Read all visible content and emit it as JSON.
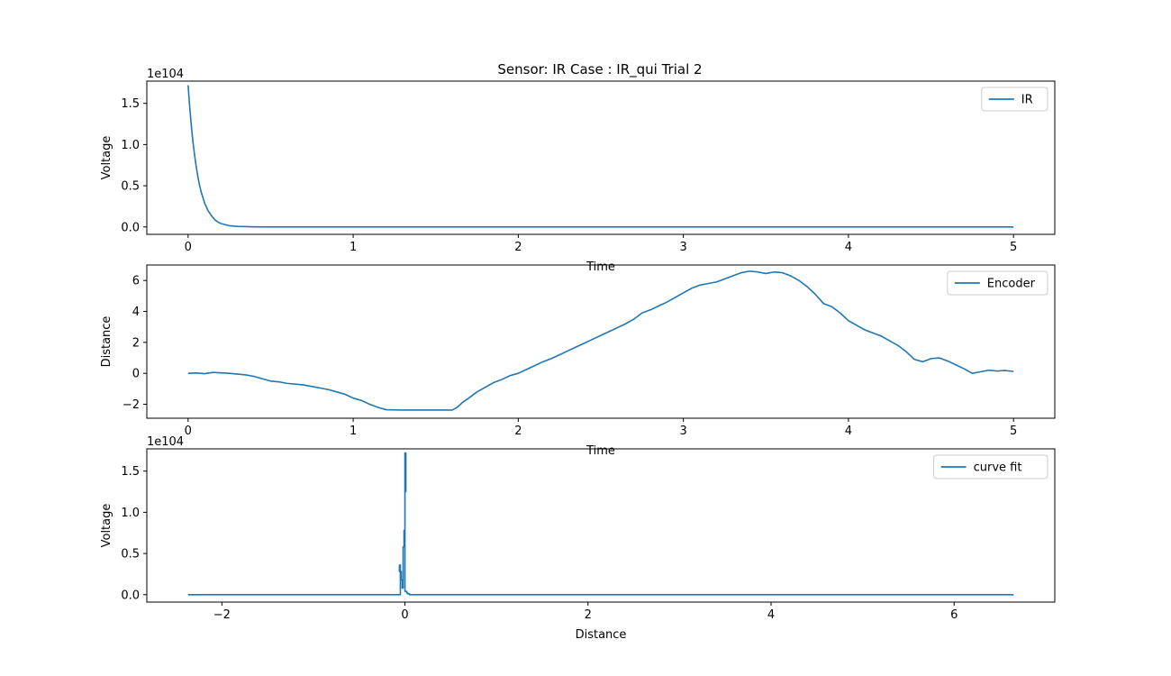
{
  "title": "Sensor: IR Case : IR_qui Trial 2",
  "colors": {
    "line": "#1f77b4",
    "axis": "#000000",
    "legend_border": "#cccccc",
    "background": "#ffffff"
  },
  "chart_data": [
    {
      "type": "line",
      "title": "Sensor: IR Case : IR_qui Trial 2",
      "xlabel": "Time",
      "ylabel": "Voltage",
      "y_offset_label": "1e104",
      "xlim": [
        -0.25,
        5.25
      ],
      "ylim": [
        -0.09,
        1.77
      ],
      "xticks": [
        0,
        1,
        2,
        3,
        4,
        5
      ],
      "xtick_labels": [
        "0",
        "1",
        "2",
        "3",
        "4",
        "5"
      ],
      "yticks": [
        0.0,
        0.5,
        1.0,
        1.5
      ],
      "ytick_labels": [
        "0.0",
        "0.5",
        "1.0",
        "1.5"
      ],
      "legend_position": "top-right",
      "grid": false,
      "series": [
        {
          "name": "IR",
          "x": [
            0,
            0.01,
            0.02,
            0.03,
            0.04,
            0.05,
            0.06,
            0.07,
            0.08,
            0.1,
            0.12,
            0.14,
            0.16,
            0.18,
            0.2,
            0.25,
            0.3,
            0.4,
            0.5,
            1,
            2,
            3,
            4,
            5
          ],
          "y": [
            1.72,
            1.45,
            1.22,
            1.02,
            0.86,
            0.72,
            0.6,
            0.5,
            0.42,
            0.29,
            0.2,
            0.14,
            0.09,
            0.06,
            0.04,
            0.015,
            0.006,
            0.001,
            0,
            0,
            0,
            0,
            0,
            0
          ]
        }
      ]
    },
    {
      "type": "line",
      "xlabel": "Time",
      "ylabel": "Distance",
      "xlim": [
        -0.25,
        5.25
      ],
      "ylim": [
        -2.9,
        7.0
      ],
      "xticks": [
        0,
        1,
        2,
        3,
        4,
        5
      ],
      "xtick_labels": [
        "0",
        "1",
        "2",
        "3",
        "4",
        "5"
      ],
      "yticks": [
        -2,
        0,
        2,
        4,
        6
      ],
      "ytick_labels": [
        "−2",
        "0",
        "2",
        "4",
        "6"
      ],
      "legend_position": "top-right",
      "grid": false,
      "series": [
        {
          "name": "Encoder",
          "x": [
            0,
            0.05,
            0.1,
            0.15,
            0.2,
            0.25,
            0.3,
            0.35,
            0.4,
            0.45,
            0.5,
            0.55,
            0.6,
            0.65,
            0.7,
            0.75,
            0.8,
            0.85,
            0.9,
            0.95,
            1.0,
            1.05,
            1.1,
            1.15,
            1.2,
            1.3,
            1.4,
            1.5,
            1.6,
            1.63,
            1.66,
            1.7,
            1.75,
            1.8,
            1.85,
            1.9,
            1.95,
            2.0,
            2.05,
            2.1,
            2.15,
            2.2,
            2.25,
            2.3,
            2.35,
            2.4,
            2.45,
            2.5,
            2.55,
            2.6,
            2.65,
            2.7,
            2.75,
            2.8,
            2.85,
            2.9,
            2.95,
            3.0,
            3.05,
            3.1,
            3.15,
            3.2,
            3.25,
            3.3,
            3.35,
            3.4,
            3.45,
            3.5,
            3.55,
            3.6,
            3.65,
            3.7,
            3.75,
            3.8,
            3.85,
            3.9,
            3.95,
            4.0,
            4.05,
            4.1,
            4.15,
            4.2,
            4.25,
            4.3,
            4.35,
            4.4,
            4.45,
            4.5,
            4.55,
            4.6,
            4.65,
            4.7,
            4.75,
            4.8,
            4.85,
            4.9,
            4.95,
            5.0
          ],
          "y": [
            0,
            0.02,
            -0.02,
            0.06,
            0.03,
            0.0,
            -0.05,
            -0.1,
            -0.2,
            -0.35,
            -0.5,
            -0.55,
            -0.65,
            -0.7,
            -0.75,
            -0.85,
            -0.95,
            -1.05,
            -1.2,
            -1.35,
            -1.6,
            -1.75,
            -2.0,
            -2.2,
            -2.35,
            -2.37,
            -2.37,
            -2.37,
            -2.37,
            -2.2,
            -1.9,
            -1.6,
            -1.2,
            -0.9,
            -0.6,
            -0.4,
            -0.15,
            0.0,
            0.25,
            0.5,
            0.75,
            0.95,
            1.2,
            1.45,
            1.7,
            1.95,
            2.2,
            2.45,
            2.7,
            2.95,
            3.2,
            3.5,
            3.9,
            4.1,
            4.35,
            4.6,
            4.9,
            5.2,
            5.5,
            5.7,
            5.8,
            5.9,
            6.1,
            6.3,
            6.5,
            6.6,
            6.55,
            6.45,
            6.55,
            6.5,
            6.3,
            6.0,
            5.6,
            5.1,
            4.5,
            4.3,
            3.9,
            3.4,
            3.1,
            2.8,
            2.6,
            2.4,
            2.1,
            1.8,
            1.4,
            0.9,
            0.75,
            0.95,
            1.0,
            0.8,
            0.55,
            0.3,
            0.0,
            0.1,
            0.2,
            0.15,
            0.18,
            0.12
          ]
        }
      ]
    },
    {
      "type": "line",
      "xlabel": "Distance",
      "ylabel": "Voltage",
      "y_offset_label": "1e104",
      "xlim": [
        -2.82,
        7.1
      ],
      "ylim": [
        -0.09,
        1.77
      ],
      "xticks": [
        -2,
        0,
        2,
        4,
        6
      ],
      "xtick_labels": [
        "−2",
        "0",
        "2",
        "4",
        "6"
      ],
      "yticks": [
        0.0,
        0.5,
        1.0,
        1.5
      ],
      "ytick_labels": [
        "0.0",
        "0.5",
        "1.0",
        "1.5"
      ],
      "legend_position": "top-right",
      "grid": false,
      "series": [
        {
          "name": "curve fit",
          "x": [
            -2.37,
            -0.05,
            -0.05,
            -0.06,
            -0.06,
            -0.04,
            -0.04,
            -0.03,
            -0.03,
            -0.02,
            -0.02,
            -0.01,
            -0.01,
            0.0,
            0.0,
            0.01,
            0.01,
            0.0,
            0.0,
            0.02,
            0.02,
            0.03,
            0.03,
            0.05,
            0.05,
            6.65
          ],
          "y": [
            0.0,
            0.0,
            0.36,
            0.36,
            0.28,
            0.28,
            0.18,
            0.18,
            0.08,
            0.08,
            0.58,
            0.58,
            0.78,
            0.78,
            1.25,
            1.25,
            1.72,
            1.72,
            0.04,
            0.04,
            0.02,
            0.02,
            0.01,
            0.01,
            0.0,
            0.0
          ]
        }
      ]
    }
  ]
}
